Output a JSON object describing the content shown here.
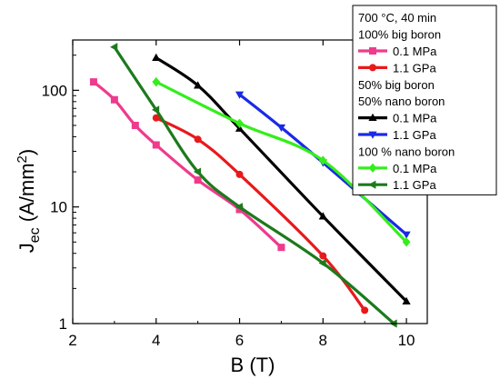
{
  "chart_data": {
    "type": "line",
    "xlabel": "B (T)",
    "ylabel": {
      "main": "J",
      "sub": "ec",
      "unit_open": " (A/mm",
      "sup": "2",
      "unit_close": ")"
    },
    "xlim": [
      2,
      10.5
    ],
    "ylim": [
      1,
      270
    ],
    "yscale": "log",
    "x_ticks": [
      2,
      4,
      6,
      8,
      10
    ],
    "x_tick_labels": [
      "2",
      "4",
      "6",
      "8",
      "10"
    ],
    "y_ticks": [
      1,
      10,
      100
    ],
    "y_tick_labels": [
      "1",
      "10",
      "100"
    ],
    "grid": false,
    "legend_position": "top-right",
    "legend": [
      {
        "kind": "header",
        "text": "700 °C, 40 min"
      },
      {
        "kind": "header",
        "text": "100% big boron"
      },
      {
        "kind": "series",
        "series": 0
      },
      {
        "kind": "series",
        "series": 1
      },
      {
        "kind": "header",
        "text": "50% big boron"
      },
      {
        "kind": "header",
        "text": "50% nano boron"
      },
      {
        "kind": "series",
        "series": 2
      },
      {
        "kind": "series",
        "series": 3
      },
      {
        "kind": "header",
        "text": "100 % nano boron"
      },
      {
        "kind": "series",
        "series": 4
      },
      {
        "kind": "series",
        "series": 5
      }
    ],
    "series": [
      {
        "name": "0.1 MPa",
        "color": "#ee3b8d",
        "marker": "square",
        "x": [
          2.5,
          3.0,
          3.5,
          4.0,
          5.0,
          6.0,
          7.0
        ],
        "y": [
          118,
          83,
          50,
          34,
          17,
          9.5,
          4.5
        ]
      },
      {
        "name": "1.1 GPa",
        "color": "#e8191b",
        "marker": "circle",
        "x": [
          4.0,
          5.0,
          6.0,
          8.0,
          9.0
        ],
        "y": [
          58,
          38,
          19,
          3.8,
          1.3
        ]
      },
      {
        "name": "0.1 MPa",
        "color": "#000000",
        "marker": "triangle-up",
        "x": [
          4.0,
          5.0,
          6.0,
          8.0,
          10.0
        ],
        "y": [
          190,
          110,
          47,
          8.3,
          1.55
        ]
      },
      {
        "name": "1.1 GPa",
        "color": "#1a2ae6",
        "marker": "triangle-down",
        "x": [
          6.0,
          7.0,
          8.0,
          10.0
        ],
        "y": [
          92,
          48,
          24,
          5.8
        ]
      },
      {
        "name": "0.1 MPa",
        "color": "#33ee1a",
        "marker": "diamond",
        "x": [
          4.0,
          6.0,
          8.0,
          10.0
        ],
        "y": [
          118,
          52,
          25,
          5.0
        ]
      },
      {
        "name": "1.1 GPa",
        "color": "#1c7a1c",
        "marker": "triangle-left",
        "x": [
          3.0,
          4.0,
          5.0,
          6.0,
          8.0,
          9.7
        ],
        "y": [
          235,
          68,
          20,
          10,
          3.3,
          1.0
        ]
      }
    ]
  }
}
